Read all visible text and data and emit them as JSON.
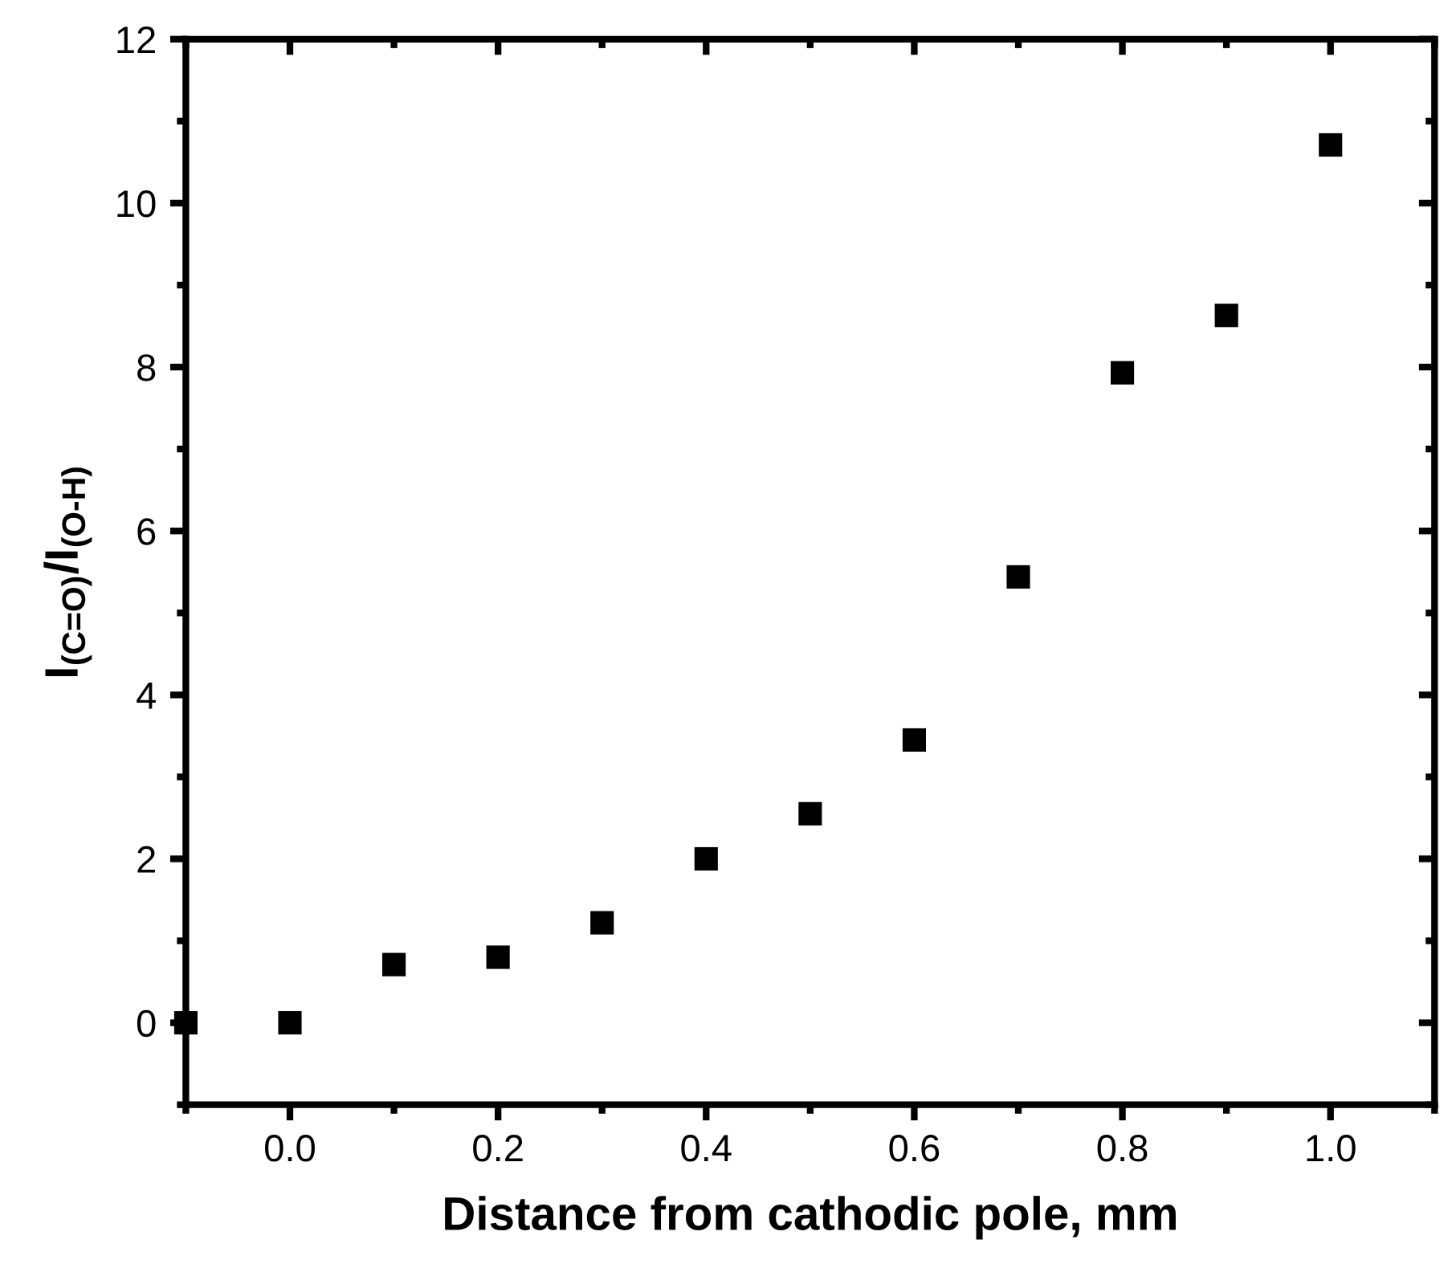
{
  "chart_data": {
    "type": "scatter",
    "xlabel": "Distance from cathodic pole, mm",
    "ylabel": "I$_{(C=O)}$/I$_{(O-H)}$",
    "x": [
      -0.1,
      0.0,
      0.1,
      0.2,
      0.3,
      0.4,
      0.5,
      0.6,
      0.7,
      0.8,
      0.9,
      1.0
    ],
    "series": [
      {
        "color": "#000000",
        "values": [
          0,
          0,
          0.71,
          0.8,
          1.22,
          2.0,
          2.55,
          3.45,
          5.44,
          7.93,
          8.63,
          10.71
        ]
      }
    ],
    "marker": "square",
    "grid": false,
    "xlim": [
      -0.1,
      1.1
    ],
    "ylim": [
      -1,
      12
    ],
    "xticks": [
      {
        "value": -0.1,
        "label": null
      },
      {
        "value": 0.0,
        "label": "0.0"
      },
      {
        "value": 0.1,
        "label": null
      },
      {
        "value": 0.2,
        "label": "0.2"
      },
      {
        "value": 0.3,
        "label": null
      },
      {
        "value": 0.4,
        "label": "0.4"
      },
      {
        "value": 0.5,
        "label": null
      },
      {
        "value": 0.6,
        "label": "0.6"
      },
      {
        "value": 0.7,
        "label": null
      },
      {
        "value": 0.8,
        "label": "0.8"
      },
      {
        "value": 0.9,
        "label": null
      },
      {
        "value": 1.0,
        "label": "1.0"
      },
      {
        "value": 1.1,
        "label": null
      }
    ],
    "yticks": [
      {
        "value": -1,
        "label": null
      },
      0,
      {
        "value": 1,
        "label": null
      },
      2,
      {
        "value": 3,
        "label": null
      },
      4,
      {
        "value": 5,
        "label": null
      },
      6,
      {
        "value": 7,
        "label": null
      },
      8,
      {
        "value": 9,
        "label": null
      },
      10,
      {
        "value": 11,
        "label": null
      },
      12
    ]
  }
}
